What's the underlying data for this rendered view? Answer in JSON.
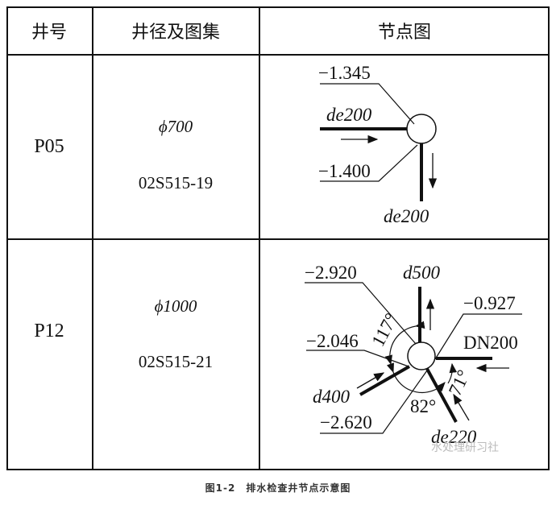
{
  "table": {
    "headers": [
      "井号",
      "井径及图集",
      "节点图"
    ],
    "rows": [
      {
        "well": "P05",
        "diameter": "ϕ700",
        "atlas": "02S515-19",
        "diagram": {
          "labels": [
            "−1.345",
            "de200",
            "−1.400",
            "de200"
          ]
        }
      },
      {
        "well": "P12",
        "diameter": "ϕ1000",
        "atlas": "02S515-21",
        "diagram": {
          "labels": [
            "−2.920",
            "d500",
            "−0.927",
            "−2.046",
            "DN200",
            "117°",
            "71°",
            "82°",
            "d400",
            "−2.620",
            "de220"
          ]
        }
      }
    ]
  },
  "caption": "图1-2　排水检查井节点示意图",
  "watermark": "水处理研习社"
}
